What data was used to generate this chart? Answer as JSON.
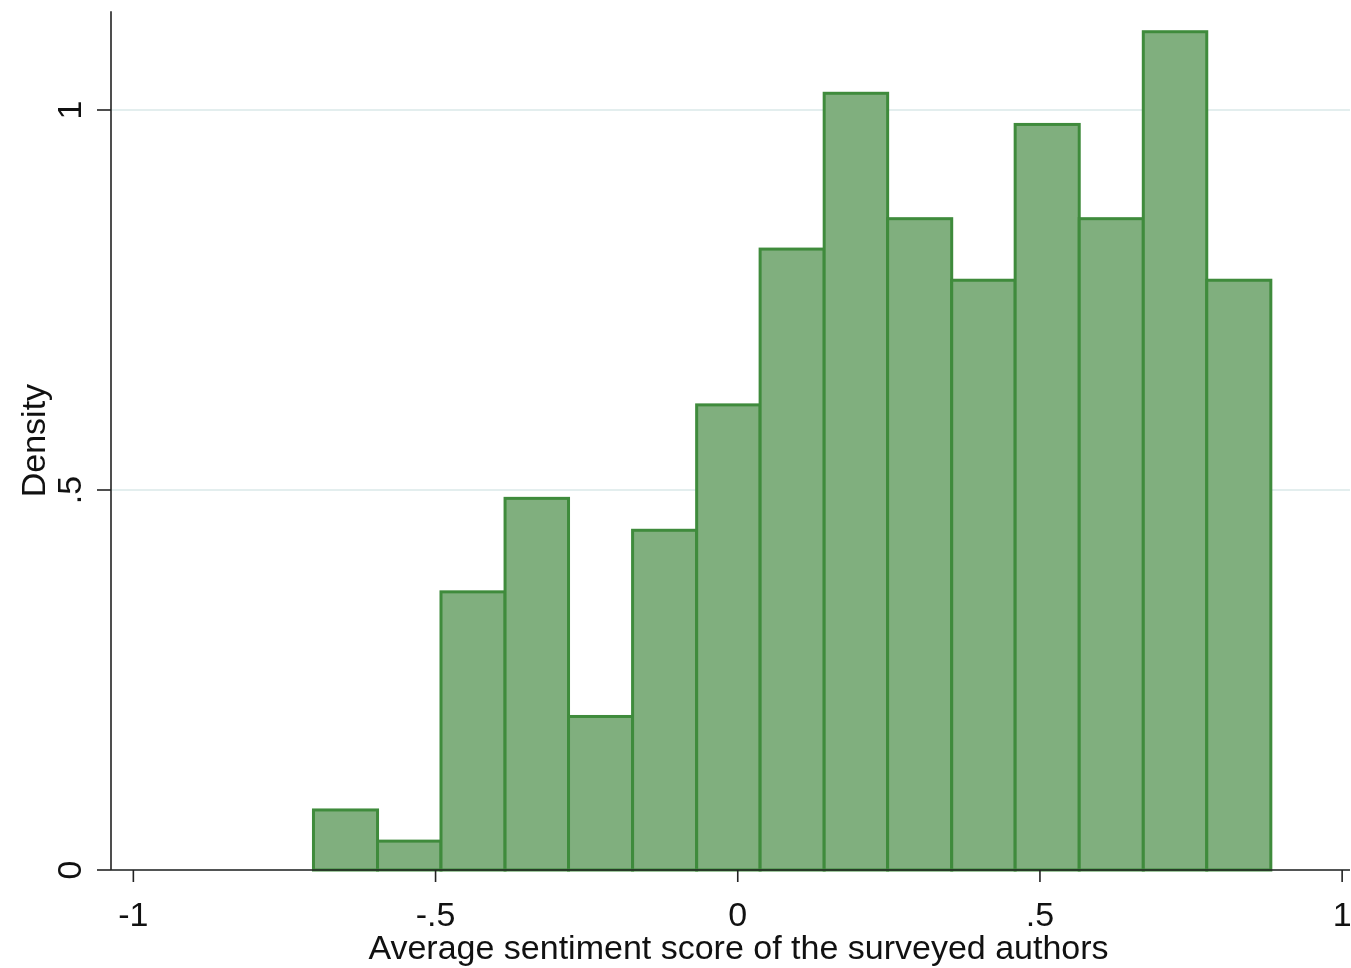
{
  "chart_data": {
    "type": "histogram",
    "xlabel": "Average sentiment score of the surveyed authors",
    "ylabel": "Density",
    "bins": [
      -0.702,
      -0.596,
      -0.491,
      -0.385,
      -0.28,
      -0.174,
      -0.068,
      0.037,
      0.143,
      0.248,
      0.354,
      0.459,
      0.565,
      0.671,
      0.776,
      0.882
    ],
    "values": [
      0.079,
      0.038,
      0.366,
      0.489,
      0.202,
      0.447,
      0.612,
      0.817,
      1.022,
      0.857,
      0.776,
      0.981,
      0.857,
      1.103,
      0.776
    ],
    "color": "#80af7e",
    "xlim": [
      -1.037,
      1.013
    ],
    "xticks": [
      -1,
      {
        "value": -0.5,
        "label": "-.5"
      },
      0,
      {
        "value": 0.5,
        "label": ".5"
      },
      1
    ],
    "ylim": [
      0,
      1.13
    ],
    "yticks": [
      0,
      {
        "value": 0.5,
        "label": ".5"
      },
      1
    ],
    "grid": "y"
  }
}
